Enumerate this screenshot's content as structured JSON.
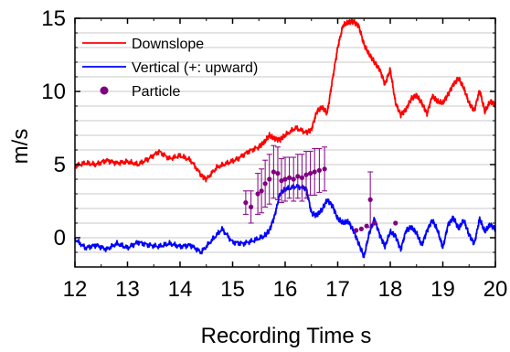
{
  "chart_data": {
    "type": "line",
    "xlabel": "Recording Time  s",
    "ylabel": "m/s",
    "xlim": [
      12,
      20
    ],
    "ylim": [
      -2,
      15
    ],
    "xticks": [
      "12",
      "13",
      "14",
      "15",
      "16",
      "17",
      "18",
      "19",
      "20"
    ],
    "yticks": [
      "0",
      "5",
      "10",
      "15"
    ],
    "grid": true,
    "legend_position": "top-left",
    "series": [
      {
        "name": "Downslope",
        "color": "#ff0000",
        "style": "line",
        "x": [
          12.0,
          12.2,
          12.4,
          12.6,
          12.8,
          13.0,
          13.2,
          13.4,
          13.6,
          13.8,
          14.0,
          14.2,
          14.4,
          14.5,
          14.7,
          14.9,
          15.1,
          15.3,
          15.5,
          15.6,
          15.7,
          15.8,
          15.9,
          16.0,
          16.2,
          16.4,
          16.5,
          16.6,
          16.7,
          16.8,
          16.9,
          17.0,
          17.1,
          17.2,
          17.3,
          17.4,
          17.5,
          17.6,
          17.7,
          17.8,
          17.9,
          18.0,
          18.1,
          18.2,
          18.3,
          18.4,
          18.5,
          18.6,
          18.7,
          18.8,
          18.9,
          19.0,
          19.1,
          19.2,
          19.3,
          19.4,
          19.5,
          19.6,
          19.7,
          19.8,
          19.9,
          20.0
        ],
        "y": [
          4.9,
          5.1,
          5.0,
          5.3,
          5.1,
          5.2,
          5.0,
          5.4,
          5.9,
          5.4,
          5.6,
          5.3,
          4.3,
          4.0,
          4.8,
          5.1,
          5.4,
          5.9,
          6.2,
          6.5,
          7.0,
          6.8,
          6.7,
          7.0,
          7.5,
          7.2,
          7.4,
          8.6,
          8.9,
          8.5,
          10.8,
          13.0,
          14.5,
          14.7,
          14.8,
          14.5,
          13.2,
          12.5,
          12.0,
          11.5,
          10.5,
          11.5,
          9.2,
          8.4,
          8.8,
          9.5,
          9.7,
          9.2,
          8.5,
          9.7,
          9.3,
          9.2,
          9.8,
          10.5,
          10.9,
          10.2,
          9.2,
          8.7,
          10.1,
          8.6,
          9.3,
          9.1
        ]
      },
      {
        "name": "Vertical (+: upward)",
        "color": "#0000ff",
        "style": "line",
        "x": [
          12.0,
          12.2,
          12.4,
          12.6,
          12.8,
          13.0,
          13.2,
          13.4,
          13.6,
          13.8,
          14.0,
          14.2,
          14.4,
          14.6,
          14.8,
          15.0,
          15.2,
          15.4,
          15.6,
          15.7,
          15.8,
          15.9,
          16.0,
          16.2,
          16.4,
          16.5,
          16.6,
          16.7,
          16.8,
          16.9,
          17.0,
          17.1,
          17.2,
          17.3,
          17.4,
          17.5,
          17.6,
          17.7,
          17.8,
          17.9,
          18.0,
          18.1,
          18.2,
          18.3,
          18.4,
          18.5,
          18.6,
          18.7,
          18.8,
          18.9,
          19.0,
          19.1,
          19.2,
          19.3,
          19.4,
          19.5,
          19.6,
          19.7,
          19.8,
          19.9,
          20.0
        ],
        "y": [
          -0.1,
          -0.7,
          -0.5,
          -0.8,
          -0.4,
          -0.7,
          -0.3,
          -0.5,
          -0.6,
          -0.4,
          -0.6,
          -0.5,
          -1.0,
          -0.2,
          0.6,
          -0.3,
          -0.4,
          -0.2,
          0.1,
          0.5,
          1.5,
          3.0,
          3.3,
          3.5,
          3.4,
          1.7,
          1.5,
          1.9,
          2.6,
          2.2,
          1.3,
          1.0,
          1.1,
          0.5,
          -0.4,
          -1.3,
          0.3,
          1.3,
          0.2,
          -0.6,
          0.4,
          0.1,
          -0.8,
          0.5,
          0.7,
          0.3,
          -0.5,
          0.5,
          1.2,
          0.5,
          -0.7,
          0.9,
          1.4,
          0.6,
          1.2,
          0.2,
          -0.4,
          1.3,
          0.4,
          0.9,
          0.6
        ]
      },
      {
        "name": "Particle",
        "color": "#800080",
        "style": "points",
        "x": [
          15.25,
          15.35,
          15.48,
          15.55,
          15.62,
          15.7,
          15.78,
          15.86,
          15.93,
          16.0,
          16.08,
          16.16,
          16.24,
          16.32,
          16.4,
          16.48,
          16.56,
          16.65,
          16.75,
          17.35,
          17.45,
          17.55,
          17.62,
          17.7,
          18.1
        ],
        "y": [
          2.4,
          2.1,
          3.0,
          3.2,
          3.7,
          4.0,
          4.5,
          4.4,
          3.9,
          4.0,
          4.1,
          4.0,
          4.2,
          4.1,
          4.3,
          4.4,
          4.5,
          4.6,
          4.7,
          0.5,
          0.6,
          0.8,
          2.6,
          1.0,
          1.0
        ],
        "err": [
          0.8,
          1.1,
          1.4,
          1.5,
          1.6,
          1.7,
          1.8,
          1.8,
          1.5,
          1.5,
          1.4,
          1.5,
          1.5,
          1.6,
          1.6,
          1.5,
          1.6,
          1.5,
          1.5,
          0.0,
          0.0,
          0.0,
          1.9,
          0.0,
          0.0
        ]
      }
    ]
  }
}
